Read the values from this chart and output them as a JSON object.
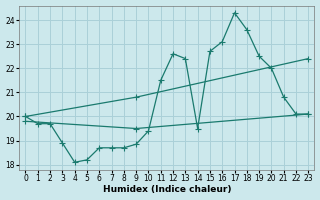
{
  "xlabel": "Humidex (Indice chaleur)",
  "ylabel": "",
  "bg_color": "#cce8ec",
  "grid_color": "#aad0d8",
  "line_color": "#1a7a6e",
  "xlim": [
    -0.5,
    23.5
  ],
  "ylim": [
    17.8,
    24.6
  ],
  "yticks": [
    18,
    19,
    20,
    21,
    22,
    23,
    24
  ],
  "xticks": [
    0,
    1,
    2,
    3,
    4,
    5,
    6,
    7,
    8,
    9,
    10,
    11,
    12,
    13,
    14,
    15,
    16,
    17,
    18,
    19,
    20,
    21,
    22,
    23
  ],
  "line1_x": [
    0,
    1,
    2,
    3,
    4,
    5,
    6,
    7,
    8,
    9,
    10,
    11,
    12,
    13,
    14,
    15,
    16,
    17,
    18,
    19,
    20,
    21,
    22,
    23
  ],
  "line1_y": [
    20.0,
    19.7,
    19.7,
    18.9,
    18.1,
    18.2,
    18.7,
    18.7,
    18.7,
    18.85,
    19.4,
    21.5,
    22.6,
    22.4,
    19.5,
    22.7,
    23.1,
    24.3,
    23.6,
    22.5,
    22.0,
    20.8,
    20.1,
    20.1
  ],
  "line2_x": [
    0,
    9,
    23
  ],
  "line2_y": [
    20.0,
    20.8,
    22.4
  ],
  "line3_x": [
    0,
    9,
    23
  ],
  "line3_y": [
    19.8,
    19.5,
    20.1
  ]
}
